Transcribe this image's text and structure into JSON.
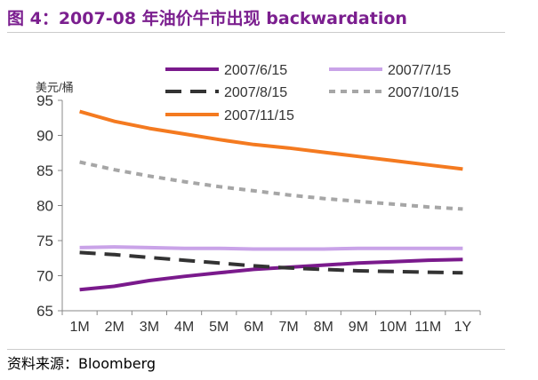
{
  "figure": {
    "title": "图 4：2007-08 年油价牛市出现 backwardation",
    "source": "资料来源：Bloomberg"
  },
  "chart_data": {
    "type": "line",
    "ylabel": "美元/桶",
    "xlabel": "",
    "categories": [
      "1M",
      "2M",
      "3M",
      "4M",
      "5M",
      "6M",
      "7M",
      "8M",
      "9M",
      "10M",
      "11M",
      "1Y"
    ],
    "ylim": [
      65,
      95
    ],
    "yticks": [
      65,
      70,
      75,
      80,
      85,
      90,
      95
    ],
    "grid": false,
    "legend": "top",
    "series": [
      {
        "name": "2007/6/15",
        "color": "#7a1a8c",
        "dash": "solid",
        "values": [
          68.0,
          68.5,
          69.3,
          69.9,
          70.4,
          70.9,
          71.2,
          71.5,
          71.8,
          72.0,
          72.2,
          72.3
        ]
      },
      {
        "name": "2007/7/15",
        "color": "#c9a3e8",
        "dash": "solid",
        "values": [
          74.0,
          74.1,
          74.0,
          73.9,
          73.9,
          73.8,
          73.8,
          73.8,
          73.9,
          73.9,
          73.9,
          73.9
        ]
      },
      {
        "name": "2007/8/15",
        "color": "#333333",
        "dash": "long",
        "values": [
          73.3,
          73.0,
          72.6,
          72.2,
          71.8,
          71.4,
          71.1,
          70.9,
          70.7,
          70.6,
          70.5,
          70.4
        ]
      },
      {
        "name": "2007/10/15",
        "color": "#a6a6a6",
        "dash": "short",
        "values": [
          86.2,
          85.1,
          84.2,
          83.4,
          82.7,
          82.1,
          81.5,
          81.0,
          80.6,
          80.2,
          79.8,
          79.5
        ]
      },
      {
        "name": "2007/11/15",
        "color": "#f47a20",
        "dash": "solid",
        "values": [
          93.4,
          92.0,
          91.0,
          90.2,
          89.4,
          88.7,
          88.2,
          87.6,
          87.0,
          86.4,
          85.8,
          85.2
        ]
      }
    ]
  }
}
